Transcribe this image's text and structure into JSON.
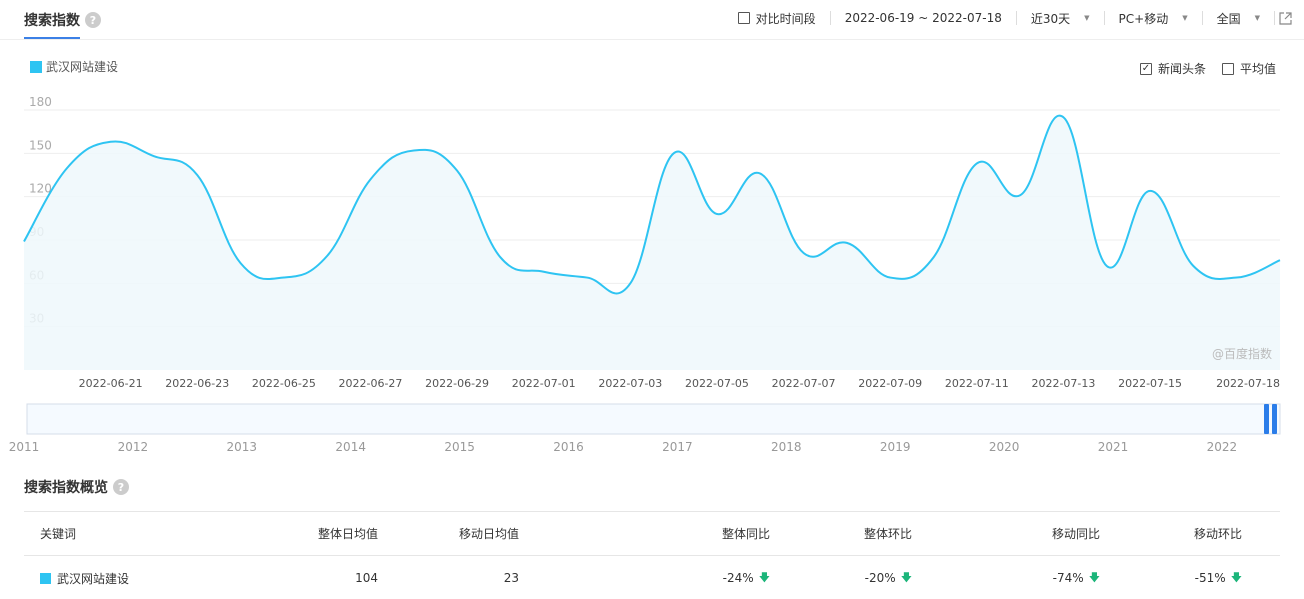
{
  "header": {
    "title": "搜索指数",
    "compare_label": "对比时间段",
    "date_range": "2022-06-19 ~ 2022-07-18",
    "period": "近30天",
    "device": "PC+移动",
    "region": "全国"
  },
  "legend": {
    "keyword": "武汉网站建设"
  },
  "options": {
    "news_label": "新闻头条",
    "news_checked": true,
    "avg_label": "平均值",
    "avg_checked": false
  },
  "watermark": "@百度指数",
  "chart_data": {
    "type": "area",
    "title": "",
    "xlabel": "",
    "ylabel": "",
    "ylim": [
      0,
      180
    ],
    "yticks": [
      30,
      60,
      90,
      120,
      150,
      180
    ],
    "grid": true,
    "x": [
      "2022-06-19",
      "2022-06-20",
      "2022-06-21",
      "2022-06-22",
      "2022-06-23",
      "2022-06-24",
      "2022-06-25",
      "2022-06-26",
      "2022-06-27",
      "2022-06-28",
      "2022-06-29",
      "2022-06-30",
      "2022-07-01",
      "2022-07-02",
      "2022-07-03",
      "2022-07-04",
      "2022-07-05",
      "2022-07-06",
      "2022-07-07",
      "2022-07-08",
      "2022-07-09",
      "2022-07-10",
      "2022-07-11",
      "2022-07-12",
      "2022-07-13",
      "2022-07-14",
      "2022-07-15",
      "2022-07-16",
      "2022-07-17",
      "2022-07-18"
    ],
    "xtick_labels": [
      "2022-06-21",
      "2022-06-23",
      "2022-06-25",
      "2022-06-27",
      "2022-06-29",
      "2022-07-01",
      "2022-07-03",
      "2022-07-05",
      "2022-07-07",
      "2022-07-09",
      "2022-07-11",
      "2022-07-13",
      "2022-07-15",
      "2022-07-18"
    ],
    "series": [
      {
        "name": "武汉网站建设",
        "color": "#2ec4f2",
        "values": [
          89,
          140,
          158,
          148,
          135,
          74,
          64,
          79,
          132,
          152,
          138,
          78,
          68,
          64,
          60,
          150,
          108,
          136,
          81,
          88,
          64,
          78,
          143,
          121,
          175,
          72,
          124,
          72,
          64,
          76
        ]
      }
    ],
    "range_axis_labels": [
      "2011",
      "2012",
      "2013",
      "2014",
      "2015",
      "2016",
      "2017",
      "2018",
      "2019",
      "2020",
      "2021",
      "2022"
    ]
  },
  "overview": {
    "title": "搜索指数概览",
    "columns": [
      "关键词",
      "整体日均值",
      "移动日均值",
      "整体同比",
      "整体环比",
      "移动同比",
      "移动环比"
    ],
    "rows": [
      {
        "keyword": "武汉网站建设",
        "overall_avg": "104",
        "mobile_avg": "23",
        "overall_yoy": "-24%",
        "overall_mom": "-20%",
        "mobile_yoy": "-74%",
        "mobile_mom": "-51%"
      }
    ]
  }
}
